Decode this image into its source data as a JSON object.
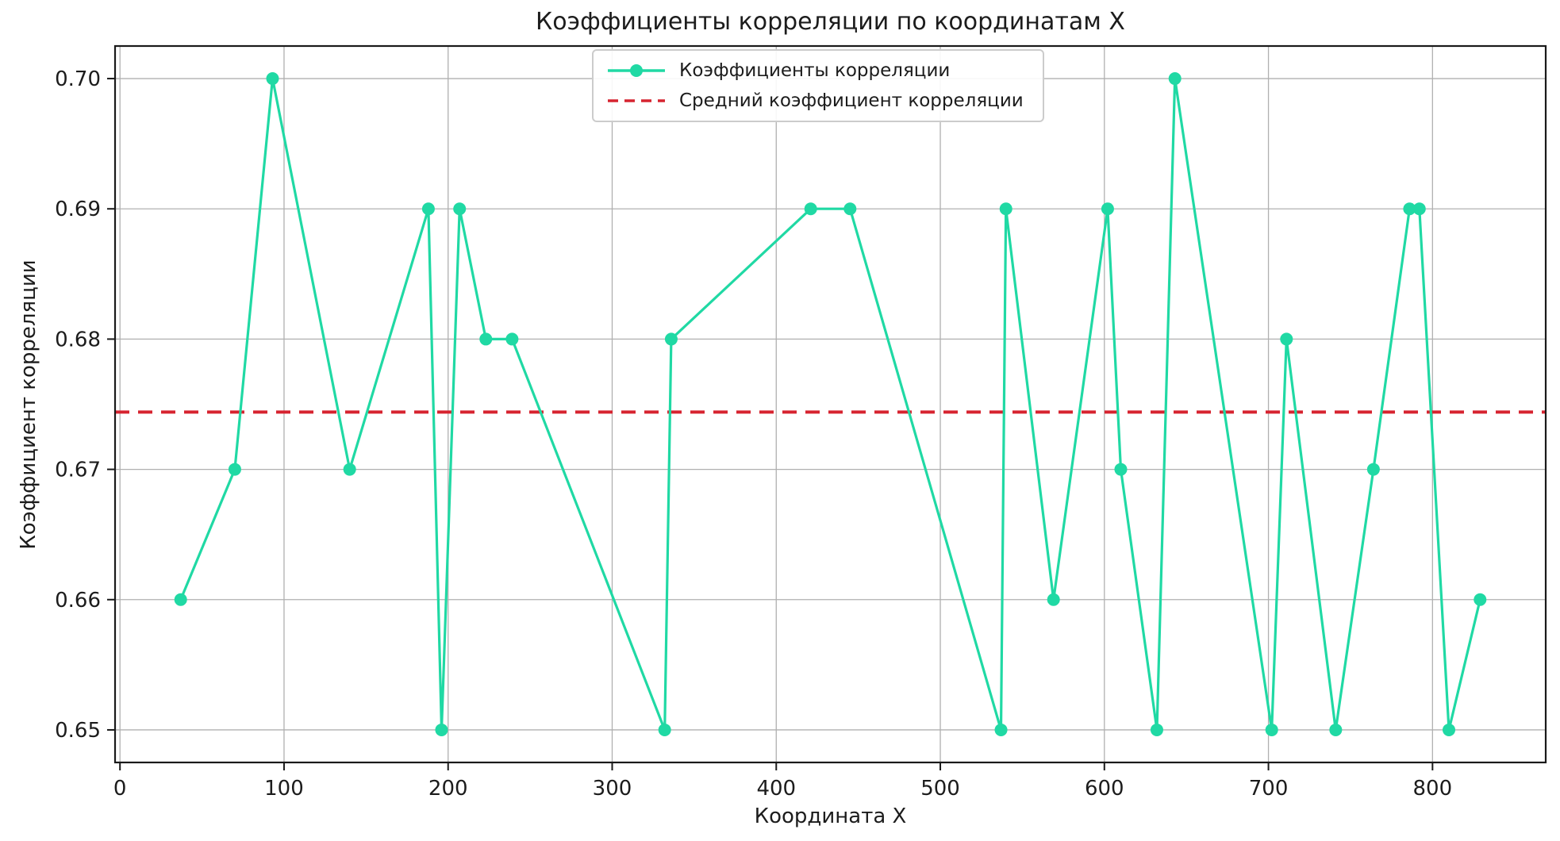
{
  "chart_data": {
    "type": "line",
    "title": "Коэффициенты корреляции по координатам X",
    "xlabel": "Координата X",
    "ylabel": "Коэффициент корреляции",
    "x": [
      37,
      70,
      93,
      140,
      188,
      196,
      207,
      223,
      239,
      332,
      336,
      421,
      445,
      537,
      540,
      569,
      602,
      610,
      632,
      643,
      702,
      711,
      741,
      764,
      786,
      792,
      810,
      829
    ],
    "y": [
      0.66,
      0.67,
      0.7,
      0.67,
      0.69,
      0.65,
      0.69,
      0.68,
      0.68,
      0.65,
      0.68,
      0.69,
      0.69,
      0.65,
      0.69,
      0.66,
      0.69,
      0.67,
      0.65,
      0.7,
      0.65,
      0.68,
      0.65,
      0.67,
      0.69,
      0.69,
      0.65,
      0.66
    ],
    "mean_value": 0.6744,
    "xlim": [
      -3,
      869
    ],
    "ylim": [
      0.6475,
      0.7025
    ],
    "xticks": [
      0,
      100,
      200,
      300,
      400,
      500,
      600,
      700,
      800
    ],
    "yticks": [
      0.65,
      0.66,
      0.67,
      0.68,
      0.69,
      0.7
    ],
    "grid": true,
    "legend_position": "upper center",
    "legend": [
      {
        "label": "Коэффициенты корреляции",
        "style": "solid-marker"
      },
      {
        "label": "Средний коэффициент корреляции",
        "style": "dashed"
      }
    ],
    "colors": {
      "series": "#20d9a4",
      "mean": "#d62430",
      "grid": "#b0b0b0",
      "spine": "#1a1a1a",
      "text": "#1c1c1c"
    }
  }
}
